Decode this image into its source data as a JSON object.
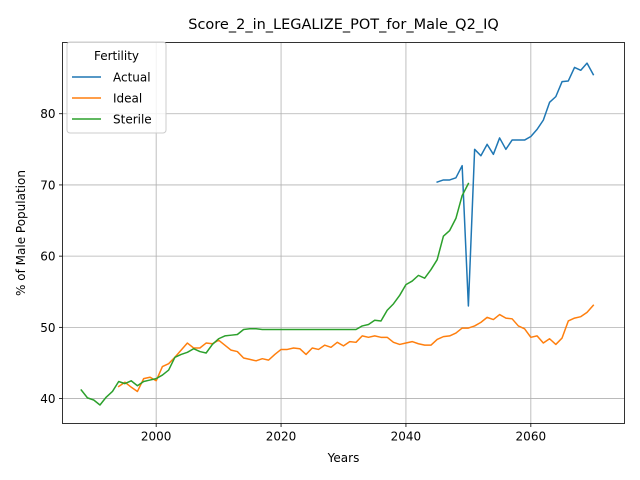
{
  "chart_data": {
    "type": "line",
    "title": "Score_2_in_LEGALIZE_POT_for_Male_Q2_IQ",
    "xlabel": "Years",
    "ylabel": "% of Male Population",
    "xlim": [
      1985,
      2075
    ],
    "ylim": [
      36.5,
      90
    ],
    "xticks": [
      2000,
      2020,
      2040,
      2060
    ],
    "yticks": [
      40,
      50,
      60,
      70,
      80
    ],
    "grid": true,
    "legend": {
      "title": "Fertility",
      "position": "top-left"
    },
    "series": [
      {
        "name": "Actual",
        "color": "#1f77b4",
        "x": [
          2045,
          2046,
          2047,
          2048,
          2049,
          2050,
          2051,
          2052,
          2053,
          2054,
          2055,
          2056,
          2057,
          2058,
          2059,
          2060,
          2061,
          2062,
          2063,
          2064,
          2065,
          2066,
          2067,
          2068,
          2069,
          2070
        ],
        "y": [
          70.4,
          70.7,
          70.7,
          71.0,
          72.7,
          53.0,
          75.0,
          74.1,
          75.7,
          74.3,
          76.6,
          75.0,
          76.3,
          76.3,
          76.3,
          76.8,
          77.8,
          79.1,
          81.6,
          82.4,
          84.5,
          84.6,
          86.5,
          86.1,
          87.1,
          85.5
        ]
      },
      {
        "name": "Ideal",
        "color": "#ff7f0e",
        "x": [
          1994,
          1995,
          1996,
          1997,
          1998,
          1999,
          2000,
          2001,
          2002,
          2003,
          2004,
          2005,
          2006,
          2007,
          2008,
          2009,
          2010,
          2011,
          2012,
          2013,
          2014,
          2015,
          2016,
          2017,
          2018,
          2019,
          2020,
          2021,
          2022,
          2023,
          2024,
          2025,
          2026,
          2027,
          2028,
          2029,
          2030,
          2031,
          2032,
          2033,
          2034,
          2035,
          2036,
          2037,
          2038,
          2039,
          2040,
          2041,
          2042,
          2043,
          2044,
          2045,
          2046,
          2047,
          2048,
          2049,
          2050,
          2051,
          2052,
          2053,
          2054,
          2055,
          2056,
          2057,
          2058,
          2059,
          2060,
          2061,
          2062,
          2063,
          2064,
          2065,
          2066,
          2067,
          2068,
          2069,
          2070
        ],
        "y": [
          41.7,
          42.3,
          41.6,
          41.0,
          42.8,
          43.0,
          42.5,
          44.5,
          44.9,
          45.8,
          46.8,
          47.8,
          47.1,
          47.1,
          47.8,
          47.7,
          48.2,
          47.5,
          46.8,
          46.6,
          45.7,
          45.5,
          45.3,
          45.6,
          45.4,
          46.2,
          46.9,
          46.9,
          47.1,
          47.0,
          46.2,
          47.1,
          46.9,
          47.5,
          47.2,
          47.9,
          47.4,
          48.0,
          47.9,
          48.8,
          48.6,
          48.8,
          48.6,
          48.6,
          47.9,
          47.6,
          47.8,
          48.0,
          47.7,
          47.5,
          47.5,
          48.3,
          48.7,
          48.8,
          49.2,
          49.9,
          49.9,
          50.2,
          50.7,
          51.4,
          51.1,
          51.8,
          51.3,
          51.2,
          50.2,
          49.8,
          48.6,
          48.8,
          47.8,
          48.4,
          47.6,
          48.5,
          50.9,
          51.3,
          51.5,
          52.1,
          53.1
        ]
      },
      {
        "name": "Sterile",
        "color": "#2ca02c",
        "x": [
          1988,
          1989,
          1990,
          1991,
          1992,
          1993,
          1994,
          1995,
          1996,
          1997,
          1998,
          1999,
          2000,
          2001,
          2002,
          2003,
          2004,
          2005,
          2006,
          2007,
          2008,
          2009,
          2010,
          2011,
          2012,
          2013,
          2014,
          2015,
          2016,
          2017,
          2018,
          2019,
          2020,
          2021,
          2022,
          2023,
          2024,
          2025,
          2026,
          2027,
          2028,
          2029,
          2030,
          2031,
          2032,
          2033,
          2034,
          2035,
          2036,
          2037,
          2038,
          2039,
          2040,
          2041,
          2042,
          2043,
          2044,
          2045,
          2046,
          2047,
          2048,
          2049,
          2050
        ],
        "y": [
          41.2,
          40.1,
          39.8,
          39.1,
          40.2,
          41.0,
          42.4,
          42.1,
          42.5,
          41.8,
          42.4,
          42.6,
          42.8,
          43.3,
          44.0,
          45.8,
          46.2,
          46.5,
          47.0,
          46.6,
          46.4,
          47.6,
          48.4,
          48.8,
          48.9,
          49.0,
          49.7,
          49.8,
          49.8,
          49.7,
          49.7,
          49.7,
          49.7,
          49.7,
          49.7,
          49.7,
          49.7,
          49.7,
          49.7,
          49.7,
          49.7,
          49.7,
          49.7,
          49.7,
          49.7,
          50.2,
          50.4,
          51.0,
          50.9,
          52.4,
          53.3,
          54.5,
          56.0,
          56.5,
          57.3,
          56.9,
          58.1,
          59.5,
          62.8,
          63.6,
          65.3,
          68.5,
          70.2
        ]
      }
    ]
  }
}
